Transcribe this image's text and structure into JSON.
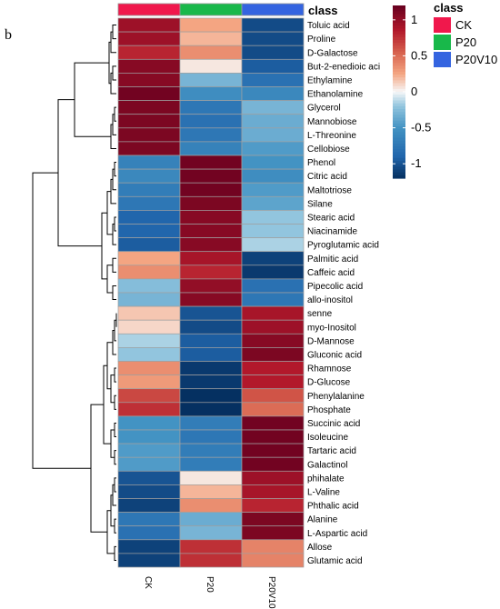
{
  "panel_label": "b",
  "chart_data": {
    "type": "heatmap",
    "columns": [
      "CK",
      "P20",
      "P20V10"
    ],
    "rows": [
      "Toluic acid",
      "Proline",
      "D-Galactose",
      "But-2-enedioic aci",
      "Ethylamine",
      "Ethanolamine",
      "Glycerol",
      "Mannobiose",
      "L-Threonine",
      "Cellobiose",
      "Phenol",
      "Citric acid",
      "Maltotriose",
      "Silane",
      "Stearic acid",
      "Niacinamide",
      "Pyroglutamic acid",
      "Palmitic acid",
      "Caffeic acid",
      "Pipecolic acid",
      "allo-inositol",
      "senne",
      "myo-Inositol",
      "D-Mannose",
      "Gluconic acid",
      "Rhamnose",
      "D-Glucose",
      "Phenylalanine",
      "Phosphate",
      "Succinic acid",
      "Isoleucine",
      "Tartaric acid",
      "Galactinol",
      "phihalate",
      "L-Valine",
      "Phthalic acid",
      "Alanine",
      "L-Aspartic acid",
      "Allose",
      "Glutamic acid"
    ],
    "values": [
      [
        0.95,
        0.25,
        -1.05
      ],
      [
        0.95,
        0.2,
        -1.05
      ],
      [
        0.8,
        0.35,
        -1.05
      ],
      [
        1.05,
        0.05,
        -0.95
      ],
      [
        1.05,
        -0.3,
        -0.8
      ],
      [
        1.15,
        -0.55,
        -0.6
      ],
      [
        1.1,
        -0.75,
        -0.3
      ],
      [
        1.1,
        -0.8,
        -0.35
      ],
      [
        1.1,
        -0.75,
        -0.35
      ],
      [
        1.1,
        -0.65,
        -0.45
      ],
      [
        -0.65,
        1.15,
        -0.5
      ],
      [
        -0.6,
        1.15,
        -0.55
      ],
      [
        -0.7,
        1.15,
        -0.45
      ],
      [
        -0.75,
        1.1,
        -0.4
      ],
      [
        -0.9,
        1.05,
        -0.2
      ],
      [
        -0.9,
        1.05,
        -0.2
      ],
      [
        -0.95,
        1.05,
        -0.15
      ],
      [
        0.25,
        0.9,
        -1.1
      ],
      [
        0.35,
        0.8,
        -1.15
      ],
      [
        -0.25,
        1.0,
        -0.8
      ],
      [
        -0.3,
        1.05,
        -0.75
      ],
      [
        0.15,
        -1.0,
        0.9
      ],
      [
        0.1,
        -1.05,
        0.95
      ],
      [
        -0.15,
        -0.95,
        1.05
      ],
      [
        -0.2,
        -0.95,
        1.1
      ],
      [
        0.35,
        -1.15,
        0.85
      ],
      [
        0.3,
        -1.15,
        0.85
      ],
      [
        0.65,
        -1.2,
        0.6
      ],
      [
        0.75,
        -1.2,
        0.5
      ],
      [
        -0.5,
        -0.7,
        1.15
      ],
      [
        -0.5,
        -0.75,
        1.15
      ],
      [
        -0.45,
        -0.7,
        1.15
      ],
      [
        -0.45,
        -0.7,
        1.15
      ],
      [
        -1.0,
        0.05,
        0.95
      ],
      [
        -1.05,
        0.2,
        0.9
      ],
      [
        -1.1,
        0.35,
        0.8
      ],
      [
        -0.75,
        -0.35,
        1.1
      ],
      [
        -0.8,
        -0.3,
        1.1
      ],
      [
        -1.1,
        0.75,
        0.4
      ],
      [
        -1.1,
        0.75,
        0.4
      ]
    ],
    "annotation": {
      "title": "class",
      "entries": [
        {
          "label": "CK",
          "color": "#f0184c"
        },
        {
          "label": "P20",
          "color": "#18b84a"
        },
        {
          "label": "P20V10",
          "color": "#3464e0"
        }
      ]
    },
    "color_scale": {
      "ticks": [
        1,
        0.5,
        0,
        -0.5,
        -1
      ],
      "tick_labels": [
        "1",
        "0.5",
        "0",
        "-0.5",
        "-1"
      ],
      "range": [
        -1.2,
        1.2
      ],
      "colors": {
        "low": "#053061",
        "mid_low": "#4393c3",
        "center": "#f7f7f7",
        "mid_high": "#d6604d",
        "high": "#67001f"
      }
    }
  }
}
